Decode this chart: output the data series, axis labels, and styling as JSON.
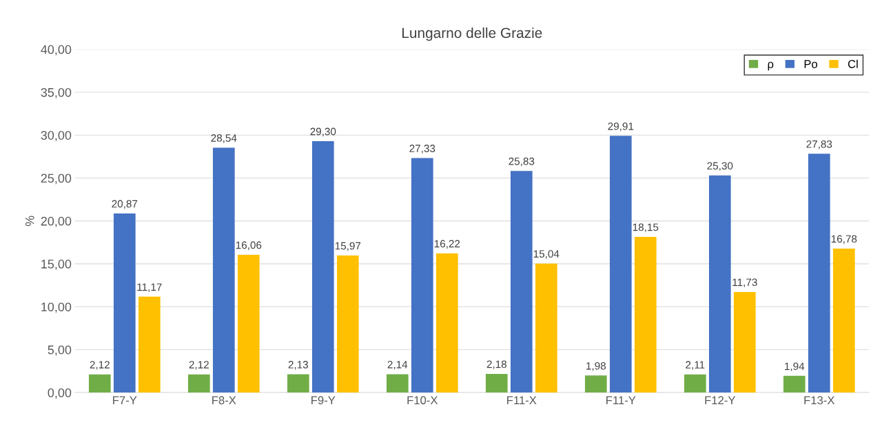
{
  "chart_data": {
    "type": "bar",
    "title": "Lungarno delle Grazie",
    "ylabel": "%",
    "categories": [
      "F7-Y",
      "F8-X",
      "F9-Y",
      "F10-X",
      "F11-X",
      "F11-Y",
      "F12-Y",
      "F13-X"
    ],
    "series": [
      {
        "name": "ρ",
        "color": "#70ad47",
        "values": [
          2.12,
          2.12,
          2.13,
          2.14,
          2.18,
          1.98,
          2.11,
          1.94
        ],
        "value_labels": [
          "2,12",
          "2,12",
          "2,13",
          "2,14",
          "2,18",
          "1,98",
          "2,11",
          "1,94"
        ]
      },
      {
        "name": "Po",
        "color": "#4472c4",
        "values": [
          20.87,
          28.54,
          29.3,
          27.33,
          25.83,
          29.91,
          25.3,
          27.83
        ],
        "value_labels": [
          "20,87",
          "28,54",
          "29,30",
          "27,33",
          "25,83",
          "29,91",
          "25,30",
          "27,83"
        ]
      },
      {
        "name": "Cl",
        "color": "#ffc000",
        "values": [
          11.17,
          16.06,
          15.97,
          16.22,
          15.04,
          18.15,
          11.73,
          16.78
        ],
        "value_labels": [
          "11,17",
          "16,06",
          "15,97",
          "16,22",
          "15,04",
          "18,15",
          "11,73",
          "16,78"
        ]
      }
    ],
    "ylim": [
      0,
      40
    ],
    "yticks": [
      {
        "value": 0,
        "label": "0,00"
      },
      {
        "value": 5,
        "label": "5,00"
      },
      {
        "value": 10,
        "label": "10,00"
      },
      {
        "value": 15,
        "label": "15,00"
      },
      {
        "value": 20,
        "label": "20,00"
      },
      {
        "value": 25,
        "label": "25,00"
      },
      {
        "value": 30,
        "label": "30,00"
      },
      {
        "value": 35,
        "label": "35,00"
      },
      {
        "value": 40,
        "label": "40,00"
      }
    ],
    "grid": "y",
    "legend": "top right"
  }
}
